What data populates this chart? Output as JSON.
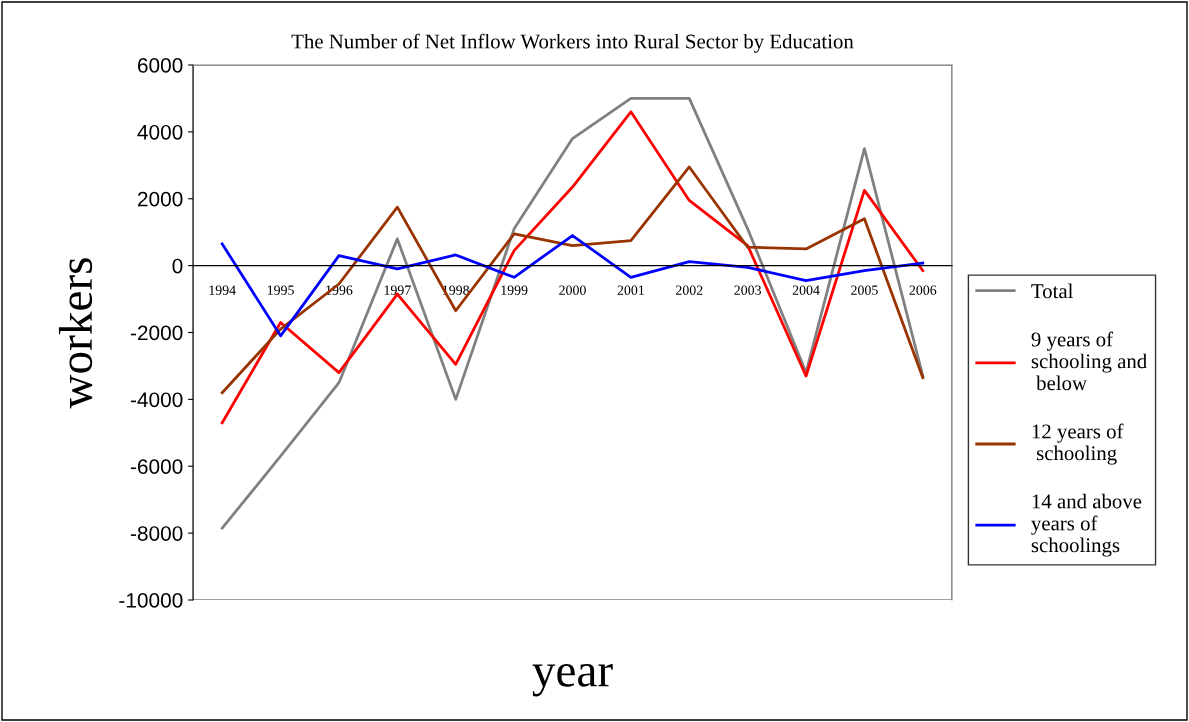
{
  "chart_data": {
    "type": "line",
    "title": "The Number of Net Inflow Workers into Rural Sector by Education",
    "xlabel": "year",
    "ylabel": "workers",
    "categories": [
      "1994",
      "1995",
      "1996",
      "1997",
      "1998",
      "1999",
      "2000",
      "2001",
      "2002",
      "2003",
      "2004",
      "2005",
      "2006"
    ],
    "ylim": [
      -10000,
      6000
    ],
    "yticks": [
      -10000,
      -8000,
      -6000,
      -4000,
      -2000,
      0,
      2000,
      4000,
      6000
    ],
    "grid": false,
    "legend": "right",
    "marker": "none",
    "line_style": "solid",
    "series": [
      {
        "name": "Total",
        "color": "#808080",
        "values": [
          -7850,
          -5700,
          -3500,
          800,
          -4000,
          1100,
          3800,
          5000,
          5000,
          1100,
          -3200,
          3500,
          -3300
        ]
      },
      {
        "name": "9 years of schooling and below",
        "color": "#ff0000",
        "values": [
          -4700,
          -1700,
          -3200,
          -850,
          -2950,
          450,
          2350,
          4600,
          1950,
          600,
          -3300,
          2250,
          -150
        ]
      },
      {
        "name": "12 years of schooling",
        "color": "#993300",
        "values": [
          -3800,
          -1900,
          -550,
          1750,
          -1350,
          950,
          600,
          750,
          2950,
          550,
          500,
          1400,
          -3350
        ]
      },
      {
        "name": "14 and above years of schoolings",
        "color": "#0000ff",
        "values": [
          650,
          -2100,
          300,
          -100,
          320,
          -350,
          900,
          -350,
          120,
          -50,
          -450,
          -150,
          80
        ]
      }
    ]
  }
}
